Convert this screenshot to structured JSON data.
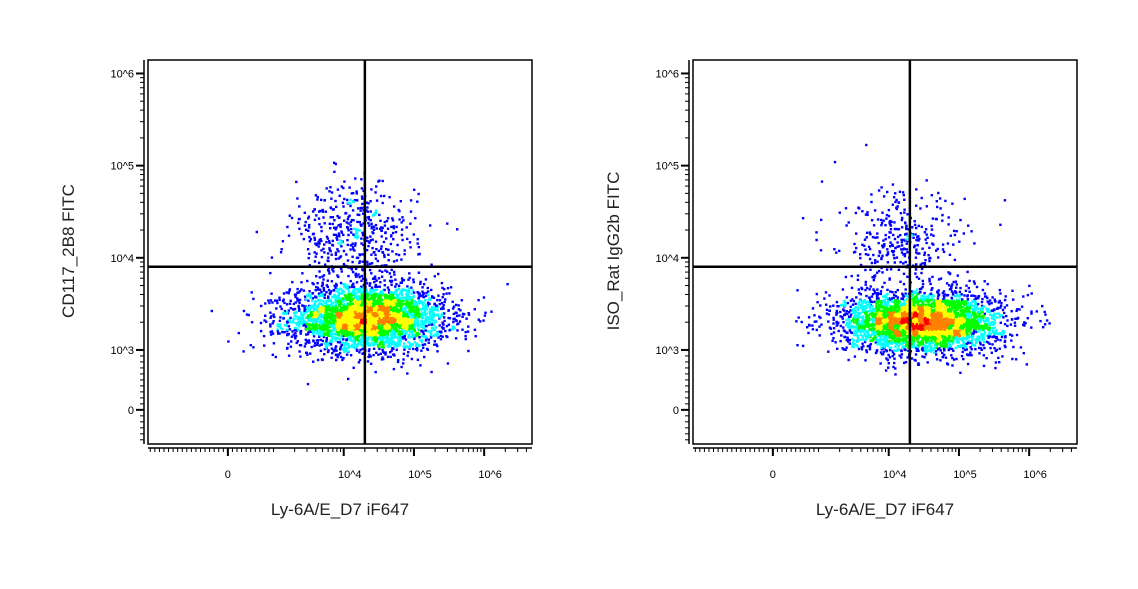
{
  "chart_data": [
    {
      "type": "scatter",
      "style": "density pseudocolor dot plot",
      "xlabel": "Ly-6A/E_D7 iF647",
      "ylabel": "CD117_2B8 FITC",
      "x_scale": "biexponential",
      "y_scale": "biexponential",
      "xlim": [
        -1750,
        4800000
      ],
      "ylim": [
        -570,
        1400000
      ],
      "x_ticks": [
        {
          "value": 0,
          "label": "0"
        },
        {
          "value": 10000,
          "label": "10^4"
        },
        {
          "value": 100000,
          "label": "10^5"
        },
        {
          "value": 1000000,
          "label": "10^6"
        }
      ],
      "y_ticks": [
        {
          "value": 0,
          "label": "0"
        },
        {
          "value": 1000,
          "label": "10^3"
        },
        {
          "value": 10000,
          "label": "10^4"
        },
        {
          "value": 100000,
          "label": "10^5"
        },
        {
          "value": 1000000,
          "label": "10^6"
        }
      ],
      "quadrant_gate": {
        "x": 20000,
        "y": 8000
      },
      "populations": [
        {
          "x_center": 22000,
          "y_center": 2200,
          "x_sd_decades": 0.55,
          "y_sd_decades": 0.17,
          "fraction": 0.88
        },
        {
          "x_center": 14000,
          "y_center": 16000,
          "x_sd_decades": 0.45,
          "y_sd_decades": 0.3,
          "fraction": 0.12
        }
      ],
      "grid": false,
      "density_colors": [
        "#0000ff",
        "#00ffff",
        "#00ff00",
        "#ffff00",
        "#ff8000",
        "#ff0000"
      ]
    },
    {
      "type": "scatter",
      "style": "density pseudocolor dot plot",
      "xlabel": "Ly-6A/E_D7 iF647",
      "ylabel": "ISO_Rat IgG2b FITC",
      "x_scale": "biexponential",
      "y_scale": "biexponential",
      "xlim": [
        -1750,
        4800000
      ],
      "ylim": [
        -570,
        1400000
      ],
      "x_ticks": [
        {
          "value": 0,
          "label": "0"
        },
        {
          "value": 10000,
          "label": "10^4"
        },
        {
          "value": 100000,
          "label": "10^5"
        },
        {
          "value": 1000000,
          "label": "10^6"
        }
      ],
      "y_ticks": [
        {
          "value": 0,
          "label": "0"
        },
        {
          "value": 1000,
          "label": "10^3"
        },
        {
          "value": 10000,
          "label": "10^4"
        },
        {
          "value": 100000,
          "label": "10^5"
        },
        {
          "value": 1000000,
          "label": "10^6"
        }
      ],
      "quadrant_gate": {
        "x": 20000,
        "y": 8000
      },
      "populations": [
        {
          "x_center": 30000,
          "y_center": 2000,
          "x_sd_decades": 0.55,
          "y_sd_decades": 0.16,
          "fraction": 0.92
        },
        {
          "x_center": 16000,
          "y_center": 14000,
          "x_sd_decades": 0.45,
          "y_sd_decades": 0.28,
          "fraction": 0.08
        }
      ],
      "grid": false,
      "density_colors": [
        "#0000ff",
        "#00ffff",
        "#00ff00",
        "#ffff00",
        "#ff8000",
        "#ff0000"
      ]
    }
  ]
}
